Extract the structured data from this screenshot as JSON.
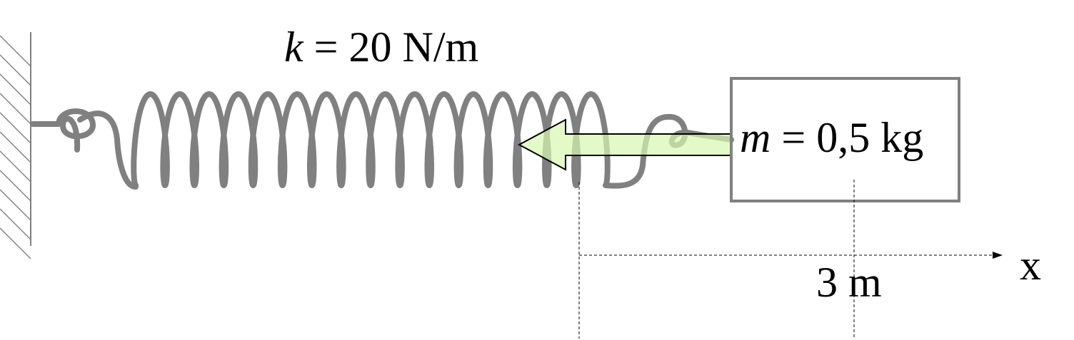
{
  "spring_label": {
    "symbol": "k",
    "equals": " = ",
    "value": "20 N/m"
  },
  "mass_label": {
    "symbol": "m",
    "equals": " = ",
    "value": "0,5 kg"
  },
  "displacement_label": "3 m",
  "axis_label": "x",
  "colors": {
    "spring": "#808080",
    "box_border": "#808080",
    "arrow_fill": "#d9f7b0",
    "arrow_stroke": "#000000",
    "text": "#000000",
    "hatch": "#808080"
  },
  "icons": {
    "wall": "hatched-wall-icon",
    "force_arrow": "left-arrow-icon"
  }
}
